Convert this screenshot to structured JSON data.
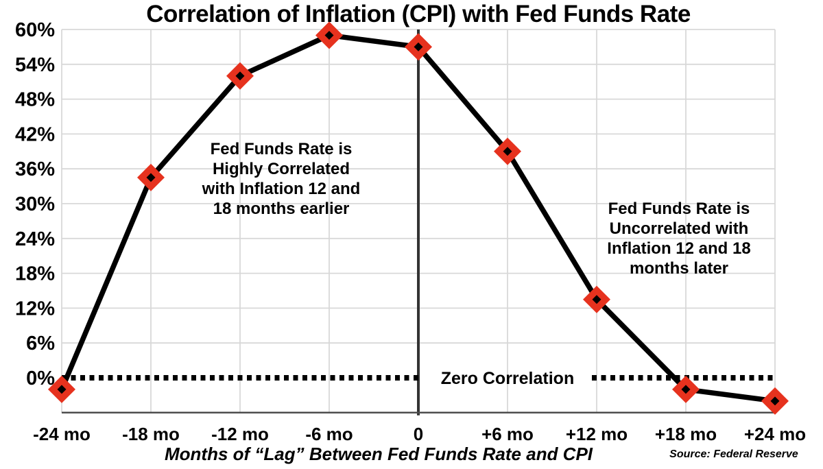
{
  "chart_data": {
    "type": "line",
    "title": "Correlation of Inflation (CPI) with Fed Funds Rate",
    "xlabel": "Months of “Lag” Between Fed Funds Rate and CPI",
    "ylabel": "",
    "categories": [
      "-24 mo",
      "-18 mo",
      "-12 mo",
      "-6 mo",
      "0",
      "+6 mo",
      "+12 mo",
      "+18 mo",
      "+24 mo"
    ],
    "x_months": [
      -24,
      -18,
      -12,
      -6,
      0,
      6,
      12,
      18,
      24
    ],
    "series": [
      {
        "name": "Correlation of CPI with Fed Funds Rate",
        "values": [
          -2,
          34.5,
          52,
          59,
          57,
          39,
          13.5,
          -2,
          -4
        ]
      }
    ],
    "ytick_values": [
      60,
      54,
      48,
      42,
      36,
      30,
      24,
      18,
      12,
      6,
      0
    ],
    "ytick_labels": [
      "60%",
      "54%",
      "48%",
      "42%",
      "36%",
      "30%",
      "24%",
      "18%",
      "12%",
      "6%",
      "0%"
    ],
    "ylim": [
      -6,
      60
    ],
    "grid": "on",
    "legend": "none",
    "zero_reference_line": {
      "value": 0,
      "style": "dotted",
      "label": "Zero Correlation"
    },
    "vertical_reference_line": {
      "x_month": 0,
      "style": "solid dark"
    }
  },
  "annotations": {
    "left": "Fed Funds Rate is\nHighly Correlated\nwith Inflation 12 and\n18 months earlier",
    "right": "Fed Funds Rate is\nUncorrelated with\nInflation 12 and 18\nmonths later",
    "zero_line": "Zero Correlation"
  },
  "source": "Source: Federal Reserve",
  "colors": {
    "background": "#ffffff",
    "text": "#000000",
    "line": "#000000",
    "marker_fill": "#e6321e",
    "marker_core": "#000000",
    "grid": "#d8d8d8",
    "zero_dotted_line": "#000000",
    "vertical_zero_line": "#333333",
    "bottom_axis": "#4d4d4d"
  }
}
